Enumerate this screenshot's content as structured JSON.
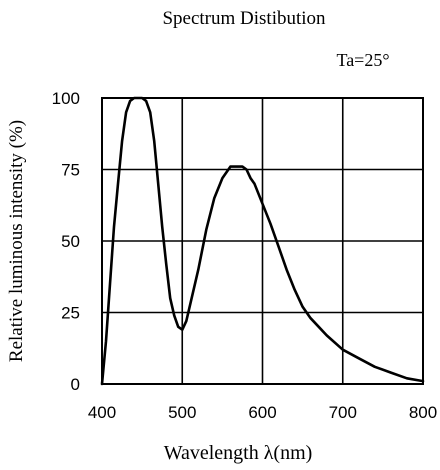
{
  "chart_data": {
    "type": "line",
    "title": "Spectrum Distibution",
    "annotation": "Ta=25°",
    "xlabel": "Wavelength λ(nm)",
    "ylabel": "Relative luminous intensity (%)",
    "xlim": [
      400,
      800
    ],
    "ylim": [
      0,
      100
    ],
    "x_ticks": [
      "400",
      "500",
      "600",
      "700",
      "800"
    ],
    "y_ticks": [
      "0",
      "25",
      "50",
      "75",
      "100"
    ],
    "grid": true,
    "series": [
      {
        "x": [
          400,
          405,
          410,
          415,
          420,
          425,
          430,
          435,
          440,
          445,
          450,
          455,
          460,
          465,
          470,
          475,
          480,
          485,
          490,
          495,
          500,
          505,
          510,
          520,
          530,
          540,
          550,
          560,
          570,
          575,
          580,
          585,
          590,
          600,
          610,
          620,
          630,
          640,
          650,
          660,
          670,
          680,
          700,
          720,
          740,
          760,
          780,
          800
        ],
        "y": [
          0,
          15,
          35,
          55,
          70,
          85,
          95,
          99,
          100,
          100,
          100,
          99,
          95,
          85,
          70,
          55,
          42,
          30,
          24,
          20,
          19,
          22,
          28,
          40,
          54,
          65,
          72,
          76,
          76,
          76,
          75,
          72,
          70,
          63,
          56,
          48,
          40,
          33,
          27,
          23,
          20,
          17,
          12,
          9,
          6,
          4,
          2,
          1
        ]
      }
    ]
  }
}
